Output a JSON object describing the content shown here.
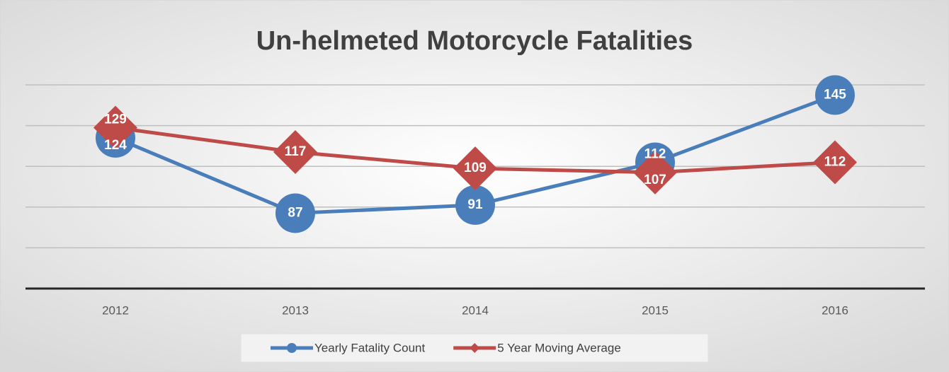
{
  "chart_data": {
    "type": "line",
    "title": "Un-helmeted Motorcycle Fatalities",
    "categories": [
      "2012",
      "2013",
      "2014",
      "2015",
      "2016"
    ],
    "series": [
      {
        "name": "Yearly Fatality Count",
        "color": "#4a7ebb",
        "marker": "circle",
        "values": [
          124,
          87,
          91,
          112,
          145
        ]
      },
      {
        "name": "5 Year Moving Average",
        "color": "#be4b48",
        "marker": "diamond",
        "values": [
          129,
          117,
          109,
          107,
          112
        ]
      }
    ],
    "ylim": [
      50,
      150
    ],
    "yticks": [
      50,
      70,
      90,
      110,
      130,
      150
    ],
    "grid": true
  }
}
